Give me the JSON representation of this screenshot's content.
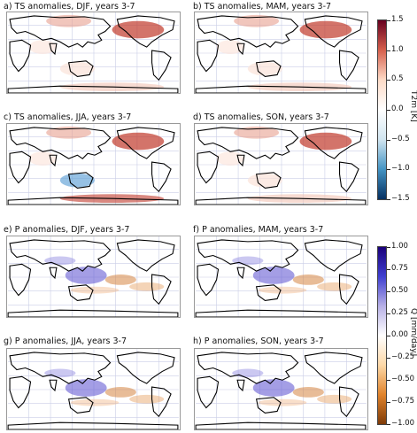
{
  "panels": [
    {
      "title": "a)     TS anomalies, DJF, years 3-7"
    },
    {
      "title": "b)     TS anomalies, MAM, years 3-7"
    },
    {
      "title": "c)     TS anomalies, JJA, years 3-7"
    },
    {
      "title": "d)     TS anomalies, SON, years 3-7"
    },
    {
      "title": "e)     P anomalies, DJF, years 3-7"
    },
    {
      "title": "f)     P anomalies, MAM, years 3-7"
    },
    {
      "title": "g)     P anomalies, JJA, years 3-7"
    },
    {
      "title": "h)     P anomalies, SON, years 3-7"
    }
  ],
  "colorbars": {
    "temperature": {
      "label": "T2m [K]",
      "ticks": [
        "1.5",
        "1.0",
        "0.5",
        "0.0",
        "−0.5",
        "−1.0",
        "−1.5"
      ],
      "colors": [
        "#67001f",
        "#d6604d",
        "#fddbc7",
        "#ffffff",
        "#d1e5f0",
        "#4393c3",
        "#053061"
      ]
    },
    "precipitation": {
      "label": "Q [mm/day]",
      "ticks": [
        "1.00",
        "0.75",
        "0.50",
        "0.25",
        "0.00",
        "−0.25",
        "−0.50",
        "−0.75",
        "−1.00"
      ],
      "colors": [
        "#1a007a",
        "#3f3fd0",
        "#b7b0e6",
        "#ffffff",
        "#fdd9a8",
        "#e0832c",
        "#7f3b08"
      ]
    }
  }
}
